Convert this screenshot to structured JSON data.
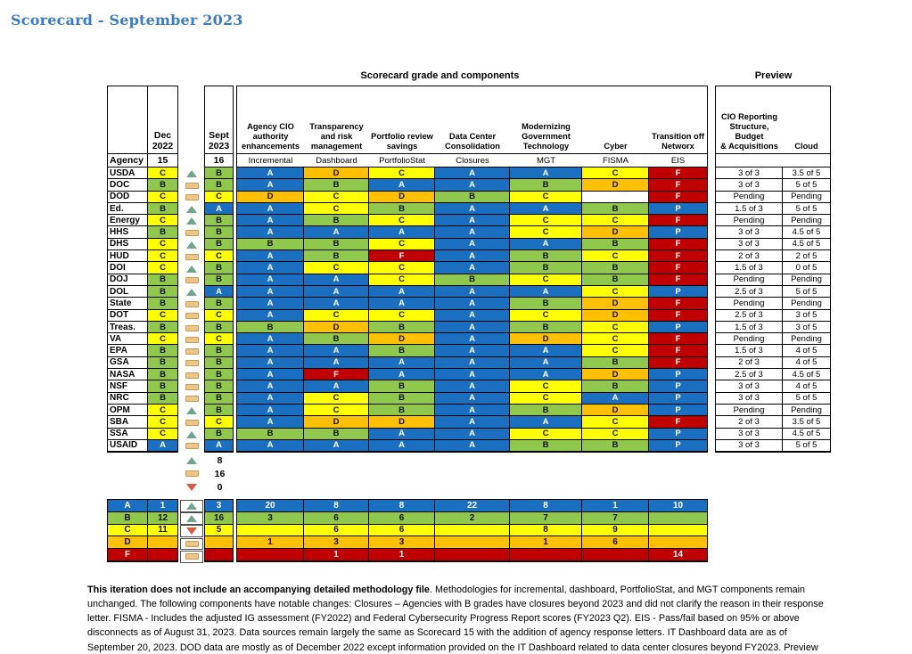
{
  "title": "Scorecard - September 2023",
  "section_headers": {
    "main": "Scorecard grade and components",
    "preview": "Preview"
  },
  "left_table": {
    "dec_header": "Dec\n2022",
    "agency_label": "Agency",
    "dec_number": "15"
  },
  "sept_table": {
    "sept_header": "Sept\n2023",
    "sept_number": "16"
  },
  "components": [
    {
      "group": "Agency CIO\nauthority\nenhancements",
      "label": "Incremental"
    },
    {
      "group": "Transparency\nand risk\nmanagement",
      "label": "Dashboard"
    },
    {
      "group": "Portfolio review\nsavings",
      "label": "PortfolioStat"
    },
    {
      "group": "Data Center\nConsolidation",
      "label": "Closures"
    },
    {
      "group": "Modernizing\nGovernment\nTechnology",
      "label": "MGT"
    },
    {
      "group": "Cyber",
      "label": "FISMA"
    },
    {
      "group": "Transition off\nNetworx",
      "label": "EIS"
    }
  ],
  "preview_columns": [
    "CIO Reporting\nStructure, Budget\n& Acquisitions",
    "Cloud"
  ],
  "agencies": [
    {
      "name": "USDA",
      "dec": "C",
      "trend": "up",
      "sept": "B",
      "components": [
        "A",
        "D",
        "C",
        "A",
        "A",
        "C",
        "F"
      ],
      "preview": [
        "3 of 3",
        "3.5 of 5"
      ]
    },
    {
      "name": "DOC",
      "dec": "B",
      "trend": "flat",
      "sept": "B",
      "components": [
        "A",
        "B",
        "A",
        "A",
        "B",
        "D",
        "F"
      ],
      "preview": [
        "3 of 3",
        "5 of 5"
      ]
    },
    {
      "name": "DOD",
      "dec": "C",
      "trend": "flat",
      "sept": "C",
      "components": [
        "D",
        "C",
        "D",
        "B",
        "C",
        "",
        "F"
      ],
      "preview": [
        "Pending",
        "Pending"
      ]
    },
    {
      "name": "Ed.",
      "dec": "B",
      "trend": "up",
      "sept": "A",
      "components": [
        "A",
        "C",
        "B",
        "A",
        "A",
        "B",
        "P"
      ],
      "preview": [
        "1.5 of 3",
        "5 of 5"
      ]
    },
    {
      "name": "Energy",
      "dec": "C",
      "trend": "up",
      "sept": "B",
      "components": [
        "A",
        "B",
        "C",
        "A",
        "C",
        "C",
        "F"
      ],
      "preview": [
        "Pending",
        "Pending"
      ]
    },
    {
      "name": "HHS",
      "dec": "B",
      "trend": "flat",
      "sept": "B",
      "components": [
        "A",
        "A",
        "A",
        "A",
        "C",
        "D",
        "P"
      ],
      "preview": [
        "3 of 3",
        "4.5 of 5"
      ]
    },
    {
      "name": "DHS",
      "dec": "C",
      "trend": "up",
      "sept": "B",
      "components": [
        "B",
        "B",
        "C",
        "A",
        "A",
        "B",
        "F"
      ],
      "preview": [
        "3 of 3",
        "4.5 of 5"
      ]
    },
    {
      "name": "HUD",
      "dec": "C",
      "trend": "flat",
      "sept": "C",
      "components": [
        "A",
        "B",
        "F",
        "A",
        "B",
        "C",
        "F"
      ],
      "preview": [
        "2 of 3",
        "2 of 5"
      ]
    },
    {
      "name": "DOI",
      "dec": "C",
      "trend": "up",
      "sept": "B",
      "components": [
        "A",
        "C",
        "C",
        "A",
        "B",
        "B",
        "F"
      ],
      "preview": [
        "1.5 of 3",
        "0 of 5"
      ]
    },
    {
      "name": "DOJ",
      "dec": "B",
      "trend": "flat",
      "sept": "B",
      "components": [
        "A",
        "A",
        "C",
        "B",
        "C",
        "B",
        "F"
      ],
      "preview": [
        "Pending",
        "Pending"
      ]
    },
    {
      "name": "DOL",
      "dec": "B",
      "trend": "up",
      "sept": "A",
      "components": [
        "A",
        "A",
        "A",
        "A",
        "A",
        "C",
        "P"
      ],
      "preview": [
        "2.5 of 3",
        "5 of 5"
      ]
    },
    {
      "name": "State",
      "dec": "B",
      "trend": "flat",
      "sept": "B",
      "components": [
        "A",
        "A",
        "A",
        "A",
        "B",
        "D",
        "F"
      ],
      "preview": [
        "Pending",
        "Pending"
      ]
    },
    {
      "name": "DOT",
      "dec": "C",
      "trend": "flat",
      "sept": "C",
      "components": [
        "A",
        "C",
        "C",
        "A",
        "C",
        "D",
        "F"
      ],
      "preview": [
        "2.5 of 3",
        "3 of 5"
      ]
    },
    {
      "name": "Treas.",
      "dec": "B",
      "trend": "flat",
      "sept": "B",
      "components": [
        "B",
        "D",
        "B",
        "A",
        "B",
        "C",
        "P"
      ],
      "preview": [
        "1.5 of 3",
        "3 of 5"
      ]
    },
    {
      "name": "VA",
      "dec": "C",
      "trend": "flat",
      "sept": "C",
      "components": [
        "A",
        "B",
        "D",
        "A",
        "D",
        "C",
        "F"
      ],
      "preview": [
        "Pending",
        "Pending"
      ]
    },
    {
      "name": "EPA",
      "dec": "B",
      "trend": "flat",
      "sept": "B",
      "components": [
        "A",
        "A",
        "B",
        "A",
        "A",
        "C",
        "F"
      ],
      "preview": [
        "1.5 of 3",
        "4 of 5"
      ]
    },
    {
      "name": "GSA",
      "dec": "B",
      "trend": "flat",
      "sept": "B",
      "components": [
        "A",
        "A",
        "A",
        "A",
        "A",
        "B",
        "F"
      ],
      "preview": [
        "2 of 3",
        "4 of 5"
      ]
    },
    {
      "name": "NASA",
      "dec": "B",
      "trend": "flat",
      "sept": "B",
      "components": [
        "A",
        "F",
        "A",
        "A",
        "A",
        "D",
        "P"
      ],
      "preview": [
        "2.5 of 3",
        "4.5 of 5"
      ]
    },
    {
      "name": "NSF",
      "dec": "B",
      "trend": "flat",
      "sept": "B",
      "components": [
        "A",
        "A",
        "B",
        "A",
        "C",
        "B",
        "P"
      ],
      "preview": [
        "3 of 3",
        "4 of 5"
      ]
    },
    {
      "name": "NRC",
      "dec": "B",
      "trend": "flat",
      "sept": "B",
      "components": [
        "A",
        "C",
        "B",
        "A",
        "C",
        "A",
        "P"
      ],
      "preview": [
        "3 of 3",
        "5 of 5"
      ]
    },
    {
      "name": "OPM",
      "dec": "C",
      "trend": "up",
      "sept": "B",
      "components": [
        "A",
        "C",
        "B",
        "A",
        "B",
        "D",
        "P"
      ],
      "preview": [
        "Pending",
        "Pending"
      ]
    },
    {
      "name": "SBA",
      "dec": "C",
      "trend": "flat",
      "sept": "C",
      "components": [
        "A",
        "D",
        "D",
        "A",
        "A",
        "C",
        "F"
      ],
      "preview": [
        "2 of 3",
        "3.5 of 5"
      ]
    },
    {
      "name": "SSA",
      "dec": "C",
      "trend": "up",
      "sept": "B",
      "components": [
        "B",
        "B",
        "A",
        "A",
        "C",
        "C",
        "P"
      ],
      "preview": [
        "3 of 3",
        "4.5 of 5"
      ]
    },
    {
      "name": "USAID",
      "dec": "A",
      "trend": "flat",
      "sept": "A",
      "components": [
        "A",
        "A",
        "A",
        "A",
        "B",
        "B",
        "P"
      ],
      "preview": [
        "3 of 3",
        "5 of 5"
      ]
    }
  ],
  "trend_legend": [
    {
      "trend": "up",
      "count": "8"
    },
    {
      "trend": "flat",
      "count": "16"
    },
    {
      "trend": "down",
      "count": "0"
    }
  ],
  "summary_rows": [
    {
      "grade": "A",
      "dec": "1",
      "trend": "up",
      "sept": "3",
      "components": [
        "20",
        "8",
        "8",
        "22",
        "8",
        "1",
        "10"
      ]
    },
    {
      "grade": "B",
      "dec": "12",
      "trend": "up",
      "sept": "16",
      "components": [
        "3",
        "6",
        "6",
        "2",
        "7",
        "7",
        ""
      ]
    },
    {
      "grade": "C",
      "dec": "11",
      "trend": "down",
      "sept": "5",
      "components": [
        "",
        "6",
        "6",
        "",
        "8",
        "9",
        ""
      ]
    },
    {
      "grade": "D",
      "dec": "",
      "trend": "flat",
      "sept": "",
      "components": [
        "1",
        "3",
        "3",
        "",
        "1",
        "6",
        ""
      ]
    },
    {
      "grade": "F",
      "dec": "",
      "trend": "flat",
      "sept": "",
      "components": [
        "",
        "1",
        "1",
        "",
        "",
        "",
        "14"
      ]
    }
  ],
  "footnote": {
    "bold": "This iteration does not include an accompanying detailed methodology file",
    "rest": ". Methodologies for incremental, dashboard, PortfolioStat, and MGT components remain unchanged. The following components have notable changes: Closures – Agencies with B grades have closures beyond 2023 and did not clarify the reason in their response letter. FISMA - Includes the adjusted IG assessment (FY2022) and Federal Cybersecurity Progress Report scores (FY2023 Q2). EIS - Pass/fail based on 95% or above disconnects as of August 31, 2023. Data sources remain largely the same as Scorecard 15 with the addition of agency response letters. IT Dashboard data are as of September 20, 2023. DOD data are mostly as of December 2022 except information provided on the IT Dashboard related to data center closures beyond FY2023. Preview ratings are based on completeness of response letters; \"Pending\" indicates forthcoming responses."
  },
  "colors": {
    "grade_A": "#1B6FC1",
    "grade_B": "#8FC84C",
    "grade_C": "#FFFF00",
    "grade_D": "#FFC000",
    "grade_F": "#C00000",
    "grade_P": "#1B6FC1",
    "trend_up": "#6DA68C",
    "trend_flat": "#EDC584",
    "trend_down": "#D85B41",
    "title_blue": "#3B7BC4"
  }
}
